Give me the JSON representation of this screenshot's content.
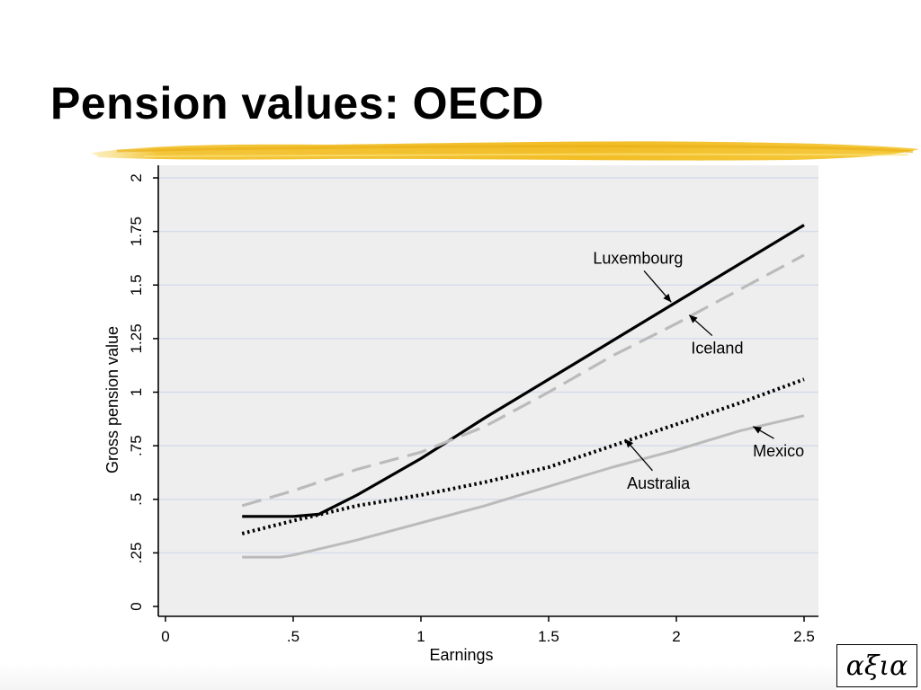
{
  "slide": {
    "title": "Pension values: OECD",
    "logo_text": "αξια",
    "accent_color": "#F2C12E"
  },
  "chart_data": {
    "type": "line",
    "title": "",
    "xlabel": "Earnings",
    "ylabel": "Gross pension value",
    "xlim": [
      0,
      2.5
    ],
    "ylim": [
      0,
      2
    ],
    "xticks": [
      0,
      0.5,
      1,
      1.5,
      2,
      2.5
    ],
    "xtick_labels": [
      "0",
      ".5",
      "1",
      "1.5",
      "2",
      "2.5"
    ],
    "yticks": [
      0,
      0.25,
      0.5,
      0.75,
      1,
      1.25,
      1.5,
      1.75,
      2
    ],
    "ytick_labels": [
      "0",
      ".25",
      ".5",
      ".75",
      "1",
      "1.25",
      "1.5",
      "1.75",
      "2"
    ],
    "grid": true,
    "background": "#EEEEEE",
    "series": [
      {
        "name": "Luxembourg",
        "color": "#000000",
        "style": "solid",
        "x": [
          0.3,
          0.5,
          0.6,
          0.75,
          1.0,
          1.25,
          1.5,
          1.75,
          2.0,
          2.25,
          2.5
        ],
        "y": [
          0.42,
          0.42,
          0.43,
          0.52,
          0.69,
          0.88,
          1.06,
          1.24,
          1.42,
          1.6,
          1.78
        ]
      },
      {
        "name": "Iceland",
        "color": "#BBBBBB",
        "style": "dashed",
        "x": [
          0.3,
          0.5,
          0.75,
          1.0,
          1.25,
          1.5,
          1.75,
          2.0,
          2.25,
          2.5
        ],
        "y": [
          0.47,
          0.54,
          0.64,
          0.72,
          0.84,
          1.0,
          1.17,
          1.32,
          1.48,
          1.64
        ]
      },
      {
        "name": "Australia",
        "color": "#000000",
        "style": "dotted",
        "x": [
          0.3,
          0.5,
          0.75,
          1.0,
          1.25,
          1.5,
          1.75,
          2.0,
          2.25,
          2.5
        ],
        "y": [
          0.34,
          0.4,
          0.47,
          0.52,
          0.58,
          0.65,
          0.75,
          0.85,
          0.95,
          1.06
        ]
      },
      {
        "name": "Mexico",
        "color": "#BBBBBB",
        "style": "solid",
        "x": [
          0.3,
          0.45,
          0.5,
          0.75,
          1.0,
          1.25,
          1.5,
          1.75,
          2.0,
          2.25,
          2.5
        ],
        "y": [
          0.23,
          0.23,
          0.24,
          0.31,
          0.39,
          0.47,
          0.56,
          0.65,
          0.73,
          0.82,
          0.89
        ]
      }
    ],
    "annotations": [
      {
        "text": "Luxembourg",
        "series": "Luxembourg",
        "text_x": 1.85,
        "text_y": 1.6,
        "arrow_to_x": 1.98,
        "arrow_to_y": 1.42
      },
      {
        "text": "Iceland",
        "series": "Iceland",
        "text_x": 2.16,
        "text_y": 1.18,
        "arrow_to_x": 2.05,
        "arrow_to_y": 1.36
      },
      {
        "text": "Australia",
        "series": "Australia",
        "text_x": 1.93,
        "text_y": 0.55,
        "arrow_to_x": 1.8,
        "arrow_to_y": 0.78
      },
      {
        "text": "Mexico",
        "series": "Mexico",
        "text_x": 2.4,
        "text_y": 0.7,
        "arrow_to_x": 2.3,
        "arrow_to_y": 0.84
      }
    ]
  }
}
